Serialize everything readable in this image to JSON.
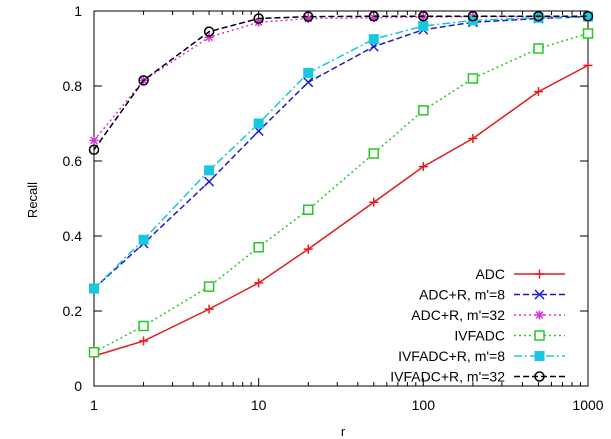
{
  "chart_data": {
    "type": "line",
    "title": "",
    "xlabel": "r",
    "ylabel": "Recall",
    "xscale": "log",
    "xlim": [
      1,
      1000
    ],
    "ylim": [
      0,
      1
    ],
    "xticks": [
      {
        "value": 1,
        "label": "1"
      },
      {
        "value": 10,
        "label": "10"
      },
      {
        "value": 100,
        "label": "100"
      },
      {
        "value": 1000,
        "label": "1000"
      }
    ],
    "yticks": [
      {
        "value": 0,
        "label": "0"
      },
      {
        "value": 0.2,
        "label": "0.2"
      },
      {
        "value": 0.4,
        "label": "0.4"
      },
      {
        "value": 0.6,
        "label": "0.6"
      },
      {
        "value": 0.8,
        "label": "0.8"
      },
      {
        "value": 1,
        "label": "1"
      }
    ],
    "grid": false,
    "legend_position": "bottom-right",
    "series": [
      {
        "name": "ADC",
        "color": "#e41a1c",
        "dash": "solid",
        "marker": "plus",
        "x": [
          1,
          2,
          5,
          10,
          20,
          50,
          100,
          200,
          500,
          1000
        ],
        "y": [
          0.08,
          0.12,
          0.205,
          0.275,
          0.365,
          0.49,
          0.585,
          0.66,
          0.785,
          0.855
        ]
      },
      {
        "name": "ADC+R, m'=8",
        "color": "#1a1acd",
        "dash": "dashed",
        "marker": "x",
        "x": [
          1,
          2,
          5,
          10,
          20,
          50,
          100,
          200,
          500,
          1000
        ],
        "y": [
          0.26,
          0.38,
          0.545,
          0.68,
          0.81,
          0.905,
          0.95,
          0.97,
          0.98,
          0.985
        ]
      },
      {
        "name": "ADC+R, m'=32",
        "color": "#d633d6",
        "dash": "dotted",
        "marker": "star",
        "x": [
          1,
          2,
          5,
          10,
          20,
          50,
          100,
          200,
          500,
          1000
        ],
        "y": [
          0.655,
          0.815,
          0.93,
          0.97,
          0.98,
          0.982,
          0.984,
          0.985,
          0.985,
          0.985
        ]
      },
      {
        "name": "IVFADC",
        "color": "#22c922",
        "dash": "dotted",
        "marker": "square-open",
        "x": [
          1,
          2,
          5,
          10,
          20,
          50,
          100,
          200,
          500,
          1000
        ],
        "y": [
          0.09,
          0.16,
          0.265,
          0.37,
          0.47,
          0.62,
          0.735,
          0.82,
          0.9,
          0.94
        ]
      },
      {
        "name": "IVFADC+R, m'=8",
        "color": "#17c6e0",
        "dash": "dashdot",
        "marker": "square-filled",
        "x": [
          1,
          2,
          5,
          10,
          20,
          50,
          100,
          200,
          500,
          1000
        ],
        "y": [
          0.26,
          0.39,
          0.575,
          0.7,
          0.835,
          0.925,
          0.96,
          0.975,
          0.982,
          0.985
        ]
      },
      {
        "name": "IVFADC+R, m'=32",
        "color": "#000000",
        "dash": "dashed",
        "marker": "circle-open",
        "x": [
          1,
          2,
          5,
          10,
          20,
          50,
          100,
          200,
          500,
          1000
        ],
        "y": [
          0.63,
          0.815,
          0.945,
          0.98,
          0.985,
          0.986,
          0.986,
          0.986,
          0.986,
          0.986
        ]
      }
    ]
  }
}
